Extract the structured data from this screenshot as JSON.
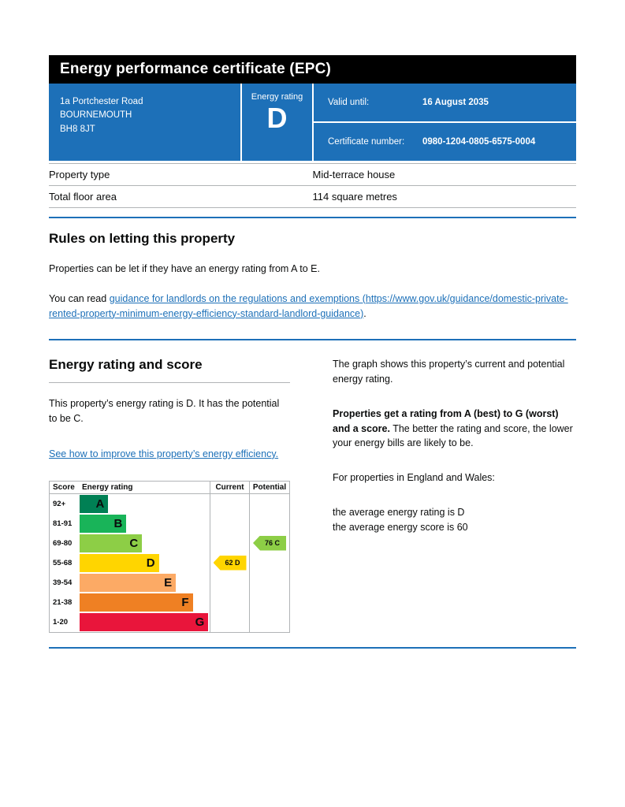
{
  "page": {
    "title": "Energy performance certificate (EPC)"
  },
  "colors": {
    "brand_blue": "#1d70b8",
    "header_black": "#000000",
    "link_blue": "#1d70b8",
    "border_grey": "#b1b4b6"
  },
  "summary": {
    "address_line1": "1a Portchester Road",
    "address_line2": "BOURNEMOUTH",
    "address_line3": "BH8 8JT",
    "energy_rating_label": "Energy rating",
    "energy_rating_letter": "D",
    "valid_until_label": "Valid until:",
    "valid_until_value": "16 August 2035",
    "certificate_number_label": "Certificate number:",
    "certificate_number_value": "0980-1204-0805-6575-0004"
  },
  "property_details": {
    "rows": [
      {
        "label": "Property type",
        "value": "Mid-terrace house"
      },
      {
        "label": "Total floor area",
        "value": "114 square metres"
      }
    ]
  },
  "rules_section": {
    "heading": "Rules on letting this property",
    "intro": "Properties can be let if they have an energy rating from A to E.",
    "read_prefix": "You can read ",
    "guidance_link_text": "guidance for landlords on the regulations and exemptions (https://www.gov.uk/guidance/domestic-private-rented-property-minimum-energy-efficiency-standard-landlord-guidance)",
    "read_suffix": "."
  },
  "rating_section": {
    "heading": "Energy rating and score",
    "summary_text": "This property’s energy rating is D. It has the potential to be C.",
    "improve_link_text": "See how to improve this property’s energy efficiency.",
    "graph_intro": "The graph shows this property’s current and potential energy rating.",
    "ratings_bold": "Properties get a rating from A (best) to G (worst) and a score.",
    "ratings_rest": " The better the rating and score, the lower your energy bills are likely to be.",
    "england_wales_intro": "For properties in England and Wales:",
    "average_rating_line": "the average energy rating is D",
    "average_score_line": "the average energy score is 60"
  },
  "chart_data": {
    "type": "bar",
    "subtype": "epc-energy-rating-bands",
    "columns": [
      "Score",
      "Energy rating",
      "Current",
      "Potential"
    ],
    "bands": [
      {
        "score": "92+",
        "letter": "A",
        "color": "#008054",
        "width_pct": 22
      },
      {
        "score": "81-91",
        "letter": "B",
        "color": "#19b459",
        "width_pct": 36
      },
      {
        "score": "69-80",
        "letter": "C",
        "color": "#8dce46",
        "width_pct": 48
      },
      {
        "score": "55-68",
        "letter": "D",
        "color": "#ffd500",
        "width_pct": 61
      },
      {
        "score": "39-54",
        "letter": "E",
        "color": "#fcaa65",
        "width_pct": 74
      },
      {
        "score": "21-38",
        "letter": "F",
        "color": "#ef8023",
        "width_pct": 87
      },
      {
        "score": "1-20",
        "letter": "G",
        "color": "#e9153b",
        "width_pct": 99
      }
    ],
    "current": {
      "score": 62,
      "letter": "D",
      "band_index": 3,
      "color": "#ffd500"
    },
    "potential": {
      "score": 76,
      "letter": "C",
      "band_index": 2,
      "color": "#8dce46"
    }
  }
}
